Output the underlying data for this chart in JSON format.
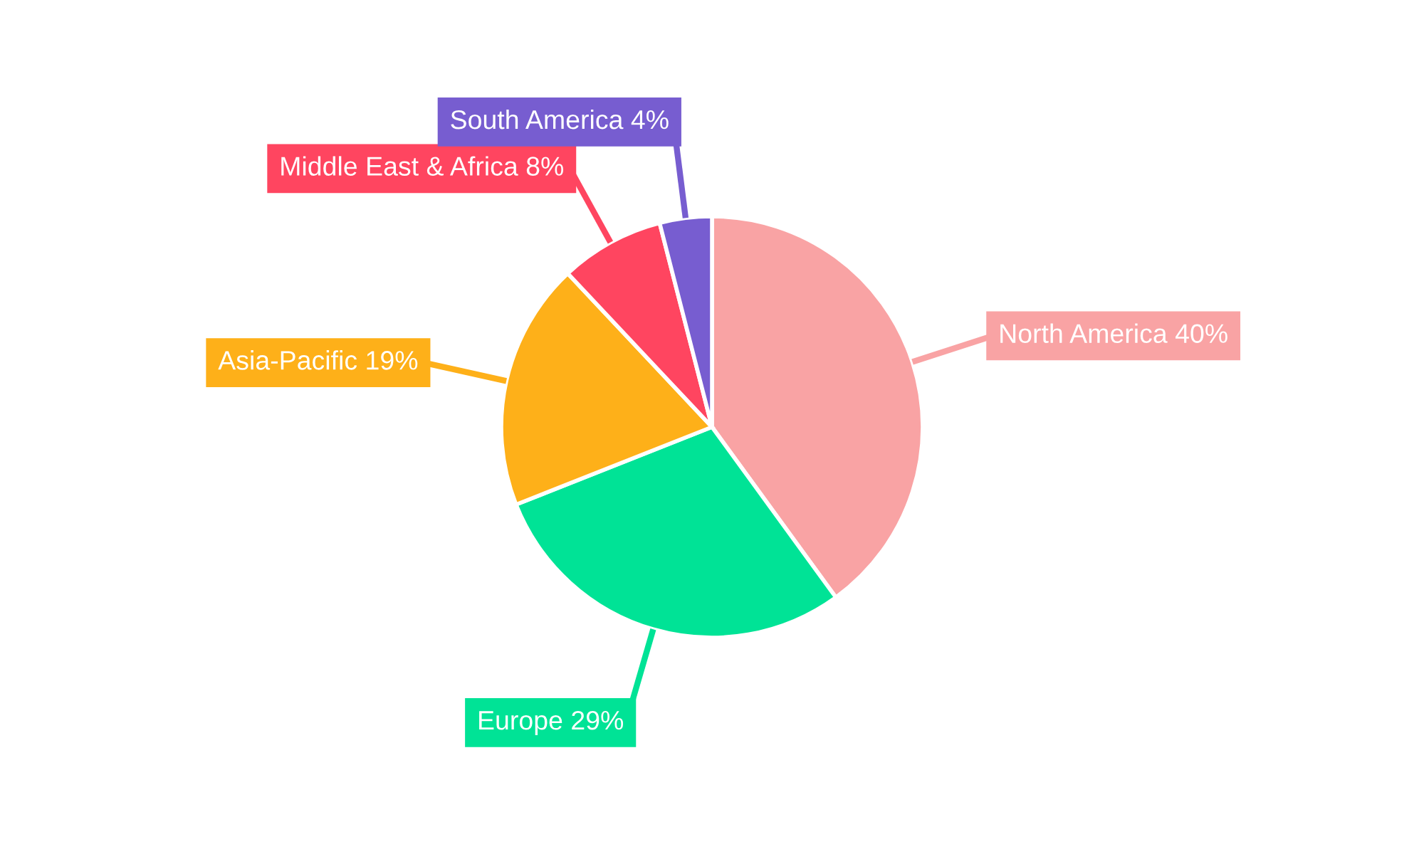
{
  "chart_data": {
    "type": "pie",
    "categories": [
      "North America",
      "Europe",
      "Asia-Pacific",
      "Middle East & Africa",
      "South America"
    ],
    "values": [
      40,
      29,
      19,
      8,
      4
    ],
    "value_labels": [
      "40%",
      "29%",
      "19%",
      "8%",
      "4%"
    ],
    "colors": [
      "#f9a3a4",
      "#00e396",
      "#feb019",
      "#ff4560",
      "#775dd0"
    ],
    "legend": false
  }
}
